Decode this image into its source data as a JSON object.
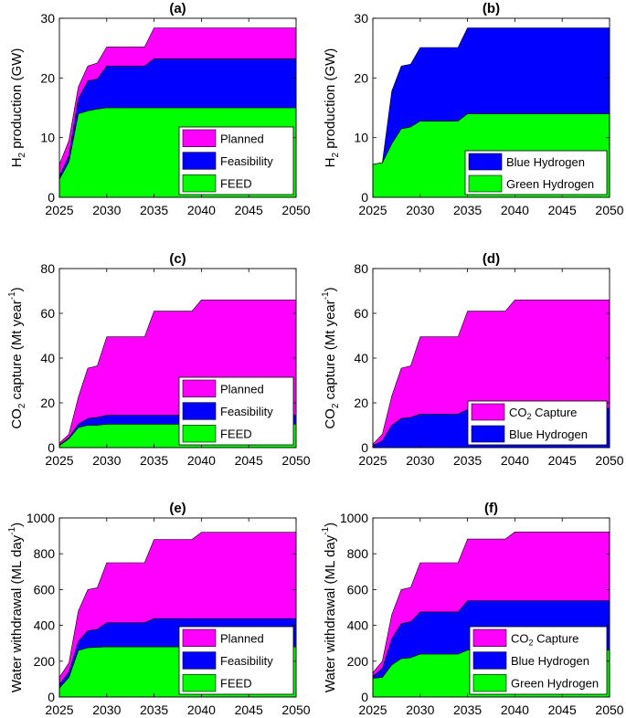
{
  "colors": {
    "magenta": "#ff00ff",
    "blue": "#0000ff",
    "green": "#00ff00"
  },
  "chart_data": [
    {
      "panel": "(a)",
      "type": "area",
      "stacked": true,
      "ylabel_main": "H",
      "ylabel_sub": "2",
      "ylabel_tail": " production (GW)",
      "xlim": [
        2025,
        2050
      ],
      "ylim": [
        0,
        30
      ],
      "xticks": [
        2025,
        2030,
        2035,
        2040,
        2045,
        2050
      ],
      "yticks": [
        0,
        10,
        20,
        30
      ],
      "x": [
        2025,
        2026,
        2027,
        2028,
        2029,
        2030,
        2031,
        2032,
        2033,
        2034,
        2035,
        2040,
        2045,
        2050
      ],
      "series": [
        {
          "name": "FEED",
          "color": "#00ff00",
          "values": [
            3,
            6,
            14,
            14.5,
            14.8,
            15,
            15,
            15,
            15,
            15,
            15,
            15,
            15,
            15
          ]
        },
        {
          "name": "Feasibility",
          "color": "#0000ff",
          "values": [
            0.5,
            1,
            2.5,
            5,
            5,
            7,
            7,
            7,
            7,
            7,
            8.2,
            8.2,
            8.2,
            8.2
          ]
        },
        {
          "name": "Planned",
          "color": "#ff00ff",
          "values": [
            2,
            2.5,
            2,
            2.5,
            2.7,
            3.2,
            3.2,
            3.2,
            3.2,
            3.2,
            5.2,
            5.2,
            5.2,
            5.2
          ]
        }
      ],
      "legend": [
        "Planned",
        "Feasibility",
        "FEED"
      ],
      "legend_position": "bottom-right"
    },
    {
      "panel": "(b)",
      "type": "area",
      "stacked": true,
      "ylabel_main": "H",
      "ylabel_sub": "2",
      "ylabel_tail": " production (GW)",
      "xlim": [
        2025,
        2050
      ],
      "ylim": [
        0,
        30
      ],
      "xticks": [
        2025,
        2030,
        2035,
        2040,
        2045,
        2050
      ],
      "yticks": [
        0,
        10,
        20,
        30
      ],
      "x": [
        2025,
        2026,
        2027,
        2028,
        2029,
        2030,
        2031,
        2032,
        2033,
        2034,
        2035,
        2040,
        2045,
        2050
      ],
      "series": [
        {
          "name": "Green Hydrogen",
          "color": "#00ff00",
          "values": [
            5.5,
            5.8,
            9,
            11.5,
            11.8,
            12.8,
            12.8,
            12.8,
            12.8,
            12.8,
            14,
            14,
            14,
            14
          ]
        },
        {
          "name": "Blue Hydrogen",
          "color": "#0000ff",
          "values": [
            0,
            0,
            8.8,
            10.5,
            10.5,
            12.3,
            12.3,
            12.3,
            12.3,
            12.3,
            14.4,
            14.4,
            14.4,
            14.4
          ]
        }
      ],
      "legend": [
        "Blue Hydrogen",
        "Green Hydrogen"
      ],
      "legend_position": "bottom-right"
    },
    {
      "panel": "(c)",
      "type": "area",
      "stacked": true,
      "ylabel_main": "CO",
      "ylabel_sub": "2",
      "ylabel_tail": " capture (Mt year",
      "ylabel_sup": "-1",
      "ylabel_end": ")",
      "xlim": [
        2025,
        2050
      ],
      "ylim": [
        0,
        80
      ],
      "xticks": [
        2025,
        2030,
        2035,
        2040,
        2045,
        2050
      ],
      "yticks": [
        0,
        20,
        40,
        60,
        80
      ],
      "x": [
        2025,
        2026,
        2027,
        2028,
        2029,
        2030,
        2031,
        2032,
        2033,
        2034,
        2035,
        2036,
        2037,
        2038,
        2039,
        2040,
        2045,
        2050
      ],
      "series": [
        {
          "name": "FEED",
          "color": "#00ff00",
          "values": [
            1,
            4,
            9,
            10,
            10,
            10.5,
            10.5,
            10.5,
            10.5,
            10.5,
            10.5,
            10.5,
            10.5,
            10.5,
            10.5,
            10.5,
            10.5,
            10.5
          ]
        },
        {
          "name": "Feasibility",
          "color": "#0000ff",
          "values": [
            0.2,
            0.5,
            1.5,
            3,
            3.5,
            4,
            4,
            4,
            4,
            4,
            4,
            4,
            4,
            4,
            4,
            4,
            4,
            4
          ]
        },
        {
          "name": "Planned",
          "color": "#ff00ff",
          "values": [
            0.8,
            1.5,
            12,
            22.5,
            23,
            35,
            35,
            35,
            35,
            35,
            46.5,
            46.5,
            46.5,
            46.5,
            46.5,
            51.5,
            51.5,
            51.5
          ]
        }
      ],
      "legend": [
        "Planned",
        "Feasibility",
        "FEED"
      ],
      "legend_position": "bottom-right"
    },
    {
      "panel": "(d)",
      "type": "area",
      "stacked": true,
      "ylabel_main": "CO",
      "ylabel_sub": "2",
      "ylabel_tail": " capture (Mt year",
      "ylabel_sup": "-1",
      "ylabel_end": ")",
      "xlim": [
        2025,
        2050
      ],
      "ylim": [
        0,
        80
      ],
      "xticks": [
        2025,
        2030,
        2035,
        2040,
        2045,
        2050
      ],
      "yticks": [
        0,
        20,
        40,
        60,
        80
      ],
      "x": [
        2025,
        2026,
        2027,
        2028,
        2029,
        2030,
        2031,
        2032,
        2033,
        2034,
        2035,
        2036,
        2037,
        2038,
        2039,
        2040,
        2045,
        2050
      ],
      "series": [
        {
          "name": "Blue Hydrogen",
          "color": "#0000ff",
          "values": [
            1,
            3,
            10,
            13,
            13.5,
            15,
            15,
            15,
            15,
            15,
            17,
            17,
            17,
            17,
            17,
            17.5,
            17.5,
            17.5
          ]
        },
        {
          "name": "CO2 Capture",
          "color": "#ff00ff",
          "values": [
            0.5,
            3,
            13,
            22.5,
            23,
            34.5,
            34.5,
            34.5,
            34.5,
            34.5,
            44,
            44,
            44,
            44,
            44,
            48.5,
            48.5,
            48.5
          ]
        }
      ],
      "legend": [
        "CO2 Capture",
        "Blue Hydrogen"
      ],
      "legend_position": "bottom-right"
    },
    {
      "panel": "(e)",
      "type": "area",
      "stacked": true,
      "ylabel_main": "Water withdrawal (ML day",
      "ylabel_sub": "",
      "ylabel_tail": "",
      "ylabel_sup": "-1",
      "ylabel_end": ")",
      "xlim": [
        2025,
        2050
      ],
      "ylim": [
        0,
        1000
      ],
      "xticks": [
        2025,
        2030,
        2035,
        2040,
        2045,
        2050
      ],
      "yticks": [
        0,
        200,
        400,
        600,
        800,
        1000
      ],
      "x": [
        2025,
        2026,
        2027,
        2028,
        2029,
        2030,
        2031,
        2032,
        2033,
        2034,
        2035,
        2036,
        2037,
        2038,
        2039,
        2040,
        2045,
        2050
      ],
      "series": [
        {
          "name": "FEED",
          "color": "#00ff00",
          "values": [
            50,
            110,
            260,
            275,
            278,
            280,
            280,
            280,
            280,
            280,
            280,
            280,
            280,
            280,
            280,
            280,
            280,
            280
          ]
        },
        {
          "name": "Feasibility",
          "color": "#0000ff",
          "values": [
            20,
            30,
            50,
            95,
            100,
            135,
            135,
            135,
            135,
            135,
            158,
            158,
            158,
            158,
            158,
            158,
            158,
            158
          ]
        },
        {
          "name": "Planned",
          "color": "#ff00ff",
          "values": [
            40,
            50,
            170,
            230,
            232,
            335,
            335,
            335,
            335,
            335,
            442,
            442,
            442,
            442,
            442,
            482,
            482,
            482
          ]
        }
      ],
      "legend": [
        "Planned",
        "Feasibility",
        "FEED"
      ],
      "legend_position": "bottom-right"
    },
    {
      "panel": "(f)",
      "type": "area",
      "stacked": true,
      "ylabel_main": "Water withdrawal (ML day",
      "ylabel_sub": "",
      "ylabel_tail": "",
      "ylabel_sup": "-1",
      "ylabel_end": ")",
      "xlim": [
        2025,
        2050
      ],
      "ylim": [
        0,
        1000
      ],
      "xticks": [
        2025,
        2030,
        2035,
        2040,
        2045,
        2050
      ],
      "yticks": [
        0,
        200,
        400,
        600,
        800,
        1000
      ],
      "x": [
        2025,
        2026,
        2027,
        2028,
        2029,
        2030,
        2031,
        2032,
        2033,
        2034,
        2035,
        2036,
        2037,
        2038,
        2039,
        2040,
        2045,
        2050
      ],
      "series": [
        {
          "name": "Green Hydrogen",
          "color": "#00ff00",
          "values": [
            105,
            110,
            180,
            215,
            220,
            240,
            240,
            240,
            240,
            240,
            262,
            262,
            262,
            262,
            262,
            262,
            262,
            262
          ]
        },
        {
          "name": "Blue Hydrogen",
          "color": "#0000ff",
          "values": [
            10,
            50,
            145,
            195,
            200,
            235,
            235,
            235,
            235,
            235,
            275,
            275,
            275,
            275,
            275,
            275,
            275,
            275
          ]
        },
        {
          "name": "CO2 Capture",
          "color": "#ff00ff",
          "values": [
            20,
            40,
            135,
            190,
            192,
            275,
            275,
            275,
            275,
            275,
            345,
            345,
            345,
            345,
            345,
            385,
            385,
            385
          ]
        }
      ],
      "legend": [
        "CO2 Capture",
        "Blue Hydrogen",
        "Green Hydrogen"
      ],
      "legend_position": "bottom-right"
    }
  ]
}
